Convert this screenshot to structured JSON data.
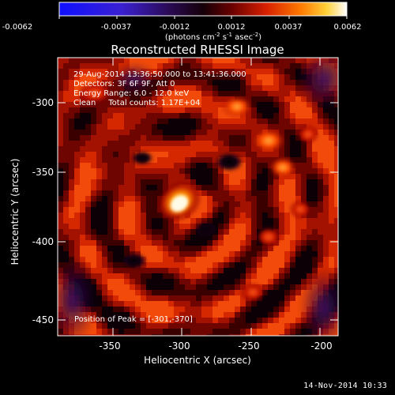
{
  "colorbar": {
    "ticks": [
      "-0.0062",
      "-0.0037",
      "-0.0012",
      "0.0012",
      "0.0037",
      "0.0062"
    ],
    "units_label": "(photons cm",
    "units_sup1": "-2",
    "units_mid": " s",
    "units_sup2": "-1",
    "units_end": " asec",
    "units_sup3": "-2",
    "units_close": ")"
  },
  "plot": {
    "title": "Reconstructed RHESSI Image",
    "xlabel": "Heliocentric X (arcsec)",
    "ylabel": "Heliocentric Y (arcsec)",
    "xticks": [
      "-350",
      "-300",
      "-250",
      "-200"
    ],
    "yticks": [
      "-300",
      "-350",
      "-400",
      "-450"
    ],
    "info": [
      "29-Aug-2014 13:36:50.000 to 13:41:36.000",
      "Detectors: 3F 6F 9F, Att 0",
      "Energy Range: 6.0 - 12.0 keV",
      "Clean     Total counts: 1.17E+04"
    ],
    "peak_label": "Position of Peak = [-301,-370]"
  },
  "footer": {
    "timestamp": "14-Nov-2014 10:33"
  },
  "colors": {
    "background": "#000000",
    "text": "#ffffff"
  }
}
